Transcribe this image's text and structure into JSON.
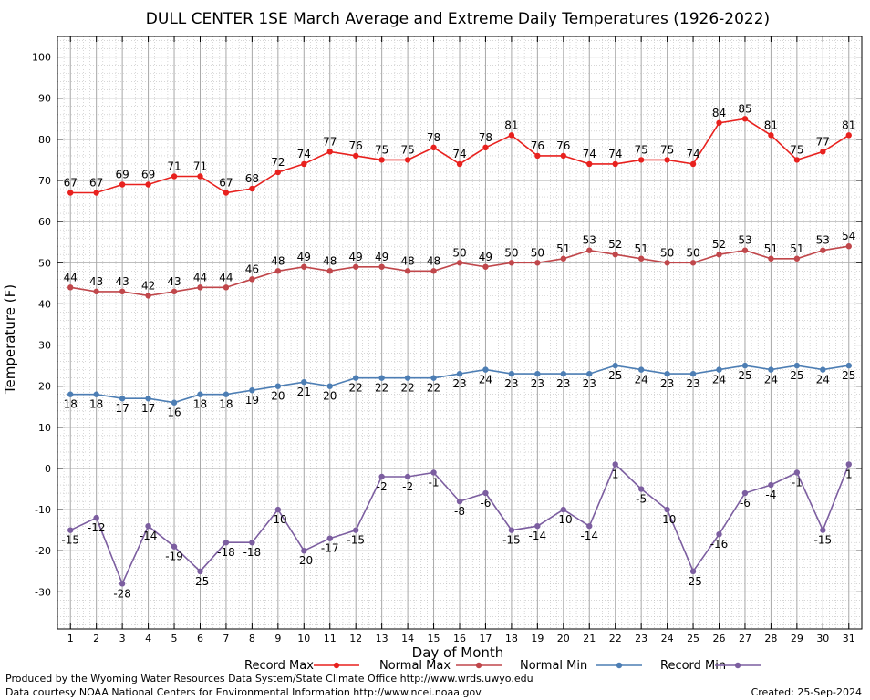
{
  "chart_data": {
    "type": "line",
    "title": "DULL CENTER 1SE March Average and Extreme Daily Temperatures (1926-2022)",
    "xlabel": "Day of Month",
    "ylabel": "Temperature (F)",
    "ylim": [
      -39,
      105
    ],
    "xlim": [
      0.5,
      31.5
    ],
    "yticks": [
      -30,
      -20,
      -10,
      0,
      10,
      20,
      30,
      40,
      50,
      60,
      70,
      80,
      90,
      100
    ],
    "x": [
      1,
      2,
      3,
      4,
      5,
      6,
      7,
      8,
      9,
      10,
      11,
      12,
      13,
      14,
      15,
      16,
      17,
      18,
      19,
      20,
      21,
      22,
      23,
      24,
      25,
      26,
      27,
      28,
      29,
      30,
      31
    ],
    "grid": true,
    "legend_position": "bottom",
    "series": [
      {
        "name": "Record Max",
        "color": "#e8211e",
        "values": [
          67,
          67,
          69,
          69,
          71,
          71,
          67,
          68,
          72,
          74,
          77,
          76,
          75,
          75,
          78,
          74,
          78,
          81,
          76,
          76,
          74,
          74,
          75,
          75,
          74,
          84,
          85,
          81,
          75,
          77,
          81
        ]
      },
      {
        "name": "Normal Max",
        "color": "#c0474b",
        "values": [
          44,
          43,
          43,
          42,
          43,
          44,
          44,
          46,
          48,
          49,
          48,
          49,
          49,
          48,
          48,
          50,
          49,
          50,
          50,
          51,
          53,
          52,
          51,
          50,
          50,
          52,
          53,
          51,
          51,
          53,
          54
        ]
      },
      {
        "name": "Normal Min",
        "color": "#4d7eb4",
        "values": [
          18,
          18,
          17,
          17,
          16,
          18,
          18,
          19,
          20,
          21,
          20,
          22,
          22,
          22,
          22,
          23,
          24,
          23,
          23,
          23,
          23,
          25,
          24,
          23,
          23,
          24,
          25,
          24,
          25,
          24,
          25
        ]
      },
      {
        "name": "Record Min",
        "color": "#7c5ea0",
        "values": [
          -15,
          -12,
          -28,
          -14,
          -19,
          -25,
          -18,
          -18,
          -10,
          -20,
          -17,
          -15,
          -2,
          -2,
          -1,
          -8,
          -6,
          -15,
          -14,
          -10,
          -14,
          1,
          -5,
          -10,
          -25,
          -16,
          -6,
          -4,
          -1,
          -15,
          1
        ]
      }
    ]
  },
  "footer": {
    "produced_by": "Produced by the Wyoming Water Resources Data System/State Climate Office http://www.wrds.uwyo.edu",
    "data_courtesy": "Data courtesy NOAA National Centers for Environmental Information http://www.ncei.noaa.gov",
    "created": "Created:  25-Sep-2024"
  }
}
